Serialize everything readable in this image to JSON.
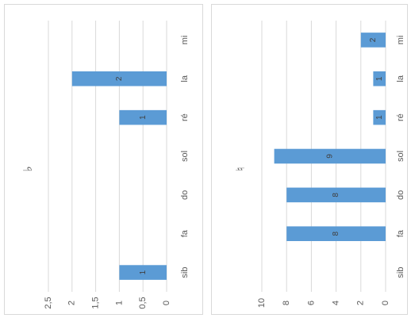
{
  "chart_data": [
    {
      "type": "bar",
      "orientation": "rotated-90-clockwise",
      "title": "♭",
      "categories": [
        "sib",
        "fa",
        "do",
        "sol",
        "ré",
        "la",
        "mi"
      ],
      "values": [
        1,
        0,
        0,
        0,
        1,
        2,
        0
      ],
      "data_labels": [
        "1",
        "",
        "",
        "",
        "1",
        "2",
        ""
      ],
      "ylim": [
        0,
        2.5
      ],
      "yticks": [
        "0",
        "0,5",
        "1",
        "1,5",
        "2",
        "2,5"
      ],
      "grid": true,
      "bar_color": "#5B9BD5"
    },
    {
      "type": "bar",
      "orientation": "rotated-90-clockwise",
      "title": "♮",
      "categories": [
        "sib",
        "fa",
        "do",
        "sol",
        "ré",
        "la",
        "mi"
      ],
      "values": [
        0,
        8,
        8,
        9,
        1,
        1,
        2
      ],
      "data_labels": [
        "",
        "8",
        "8",
        "9",
        "1",
        "1",
        "2"
      ],
      "ylim": [
        0,
        10
      ],
      "yticks": [
        "0",
        "2",
        "4",
        "6",
        "8",
        "10"
      ],
      "grid": true,
      "bar_color": "#5B9BD5"
    }
  ]
}
